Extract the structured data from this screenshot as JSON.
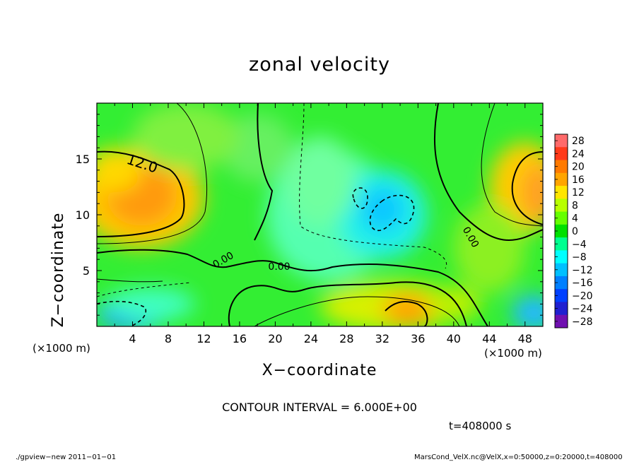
{
  "chart_data": {
    "type": "contour",
    "title": "zonal velocity",
    "xlabel": "X−coordinate",
    "ylabel": "Z−coordinate",
    "x_unit": "(×1000 m)",
    "y_unit": "(×1000 m)",
    "xlim": [
      0,
      50
    ],
    "ylim": [
      0,
      20
    ],
    "x_ticks": [
      4,
      8,
      12,
      16,
      20,
      24,
      28,
      32,
      36,
      40,
      44,
      48
    ],
    "y_ticks": [
      5,
      10,
      15
    ],
    "contour_interval": "CONTOUR INTERVAL = 6.000E+00",
    "contour_labels": [
      "12.0",
      "0.00",
      "0.00",
      "0.00"
    ],
    "colorbar": {
      "levels": [
        28,
        24,
        20,
        16,
        12,
        8,
        4,
        0,
        -4,
        -8,
        -12,
        -16,
        -20,
        -24,
        -28
      ],
      "labels": [
        "28",
        "24",
        "20",
        "16",
        "12",
        "8",
        "4",
        "0",
        "−4",
        "−8",
        "−12",
        "−16",
        "−20",
        "−24",
        "−28"
      ],
      "colors": [
        "#ff6a6a",
        "#ff3a1a",
        "#ff7a00",
        "#ffa500",
        "#ffe600",
        "#b8ff00",
        "#66ff00",
        "#00e000",
        "#00ff90",
        "#00ffff",
        "#00c0ff",
        "#0080ff",
        "#0040ff",
        "#2020d0",
        "#7010b0"
      ]
    },
    "features": [
      {
        "label": "positive max",
        "x": 5,
        "z": 11.5,
        "value": 15
      },
      {
        "label": "positive max",
        "x": 48,
        "z": 12.5,
        "value": 14
      },
      {
        "label": "positive max",
        "x": 35,
        "z": 1.5,
        "value": 15
      },
      {
        "label": "negative min",
        "x": 32,
        "z": 10.5,
        "value": -13
      },
      {
        "label": "negative min",
        "x": 4,
        "z": 1,
        "value": -12
      },
      {
        "label": "negative min",
        "x": 49,
        "z": 1,
        "value": -10
      }
    ]
  },
  "text": {
    "title": "zonal velocity",
    "xlabel": "X−coordinate",
    "ylabel": "Z−coordinate",
    "unit_x": "(×1000 m)",
    "unit_y": "(×1000 m)",
    "contour_interval": "CONTOUR INTERVAL = 6.000E+00",
    "time": "t=408000 s",
    "footer_left": "./gpview−new   2011−01−01",
    "footer_right": "MarsCond_VelX.nc@VelX,x=0:50000,z=0:20000,t=408000"
  }
}
